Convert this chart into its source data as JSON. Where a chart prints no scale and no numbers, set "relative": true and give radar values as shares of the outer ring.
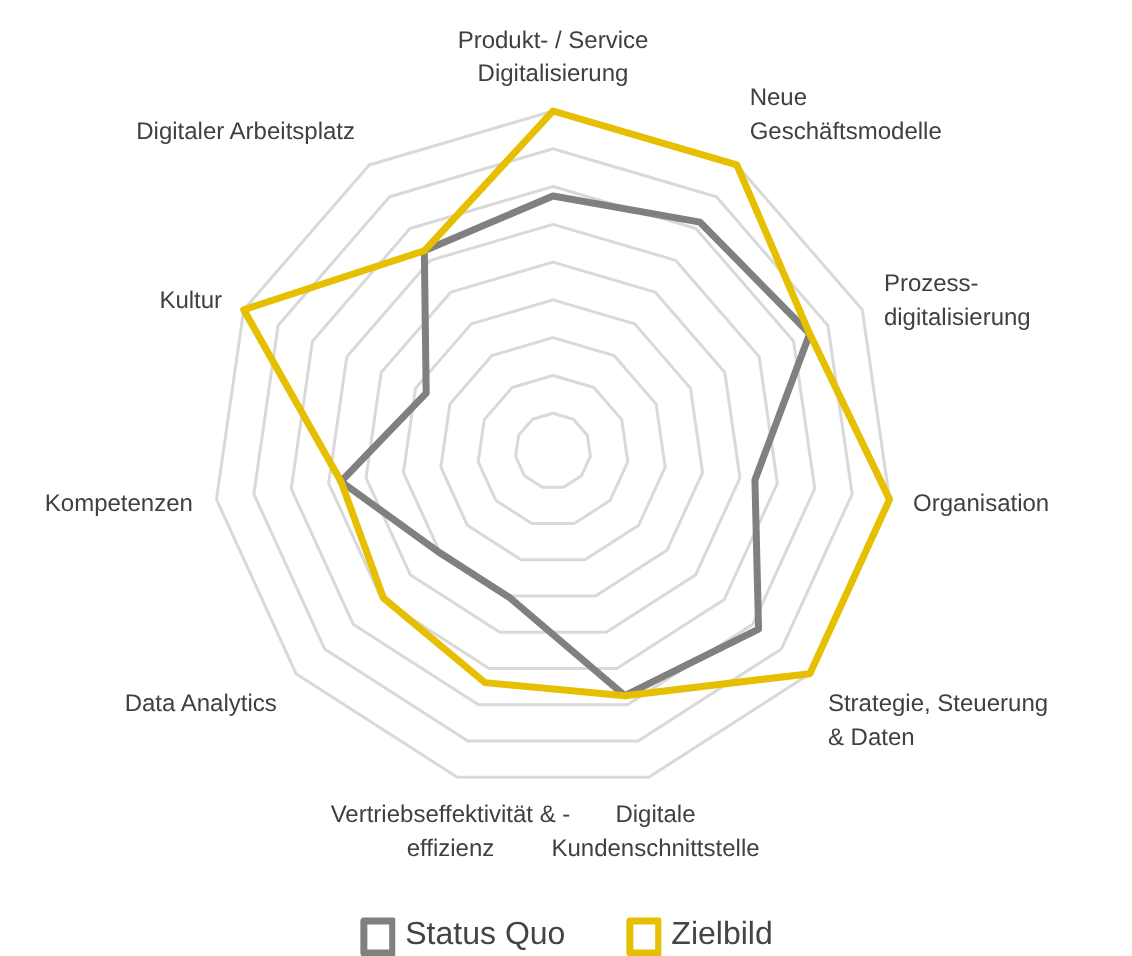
{
  "chart_data": {
    "type": "radar",
    "relative": true,
    "grid": true,
    "legend": "bottom",
    "categories": [
      "Produkt- / Service\nDigitalisierung",
      "Neue\nGeschäftsmodelle",
      "Prozess-\ndigitalisierung",
      "Organisation",
      "Strategie, Steuerung\n& Daten",
      "Digitale\nKundenschnittstelle",
      "Vertriebseffektivität & -\neffizienz",
      "Data Analytics",
      "Kompetenzen",
      "Kultur",
      "Digitaler Arbeitsplatz"
    ],
    "series": [
      {
        "name": "Status Quo",
        "color": "#808080",
        "values": [
          0.75,
          0.8,
          0.83,
          0.6,
          0.8,
          0.75,
          0.45,
          0.45,
          0.63,
          0.41,
          0.7
        ]
      },
      {
        "name": "Zielbild",
        "color": "#e6bf00",
        "values": [
          1.0,
          1.0,
          0.83,
          1.0,
          1.0,
          0.75,
          0.71,
          0.66,
          0.63,
          1.0,
          0.7
        ]
      }
    ]
  }
}
